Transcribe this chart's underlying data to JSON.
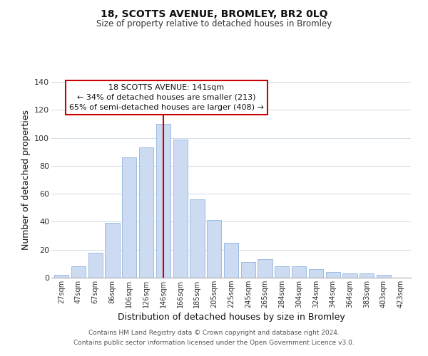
{
  "title": "18, SCOTTS AVENUE, BROMLEY, BR2 0LQ",
  "subtitle": "Size of property relative to detached houses in Bromley",
  "xlabel": "Distribution of detached houses by size in Bromley",
  "ylabel": "Number of detached properties",
  "categories": [
    "27sqm",
    "47sqm",
    "67sqm",
    "86sqm",
    "106sqm",
    "126sqm",
    "146sqm",
    "166sqm",
    "185sqm",
    "205sqm",
    "225sqm",
    "245sqm",
    "265sqm",
    "284sqm",
    "304sqm",
    "324sqm",
    "344sqm",
    "364sqm",
    "383sqm",
    "403sqm",
    "423sqm"
  ],
  "values": [
    2,
    8,
    18,
    39,
    86,
    93,
    110,
    99,
    56,
    41,
    25,
    11,
    13,
    8,
    8,
    6,
    4,
    3,
    3,
    2,
    0
  ],
  "bar_color": "#ccdaf2",
  "bar_edge_color": "#9bbde0",
  "vline_label": "146sqm",
  "vline_color": "#cc0000",
  "ylim": [
    0,
    140
  ],
  "yticks": [
    0,
    20,
    40,
    60,
    80,
    100,
    120,
    140
  ],
  "annotation_title": "18 SCOTTS AVENUE: 141sqm",
  "annotation_line1": "← 34% of detached houses are smaller (213)",
  "annotation_line2": "65% of semi-detached houses are larger (408) →",
  "annotation_box_color": "#ffffff",
  "annotation_box_edge": "#cc0000",
  "footer1": "Contains HM Land Registry data © Crown copyright and database right 2024.",
  "footer2": "Contains public sector information licensed under the Open Government Licence v3.0.",
  "background_color": "#ffffff",
  "grid_color": "#d0dde8"
}
